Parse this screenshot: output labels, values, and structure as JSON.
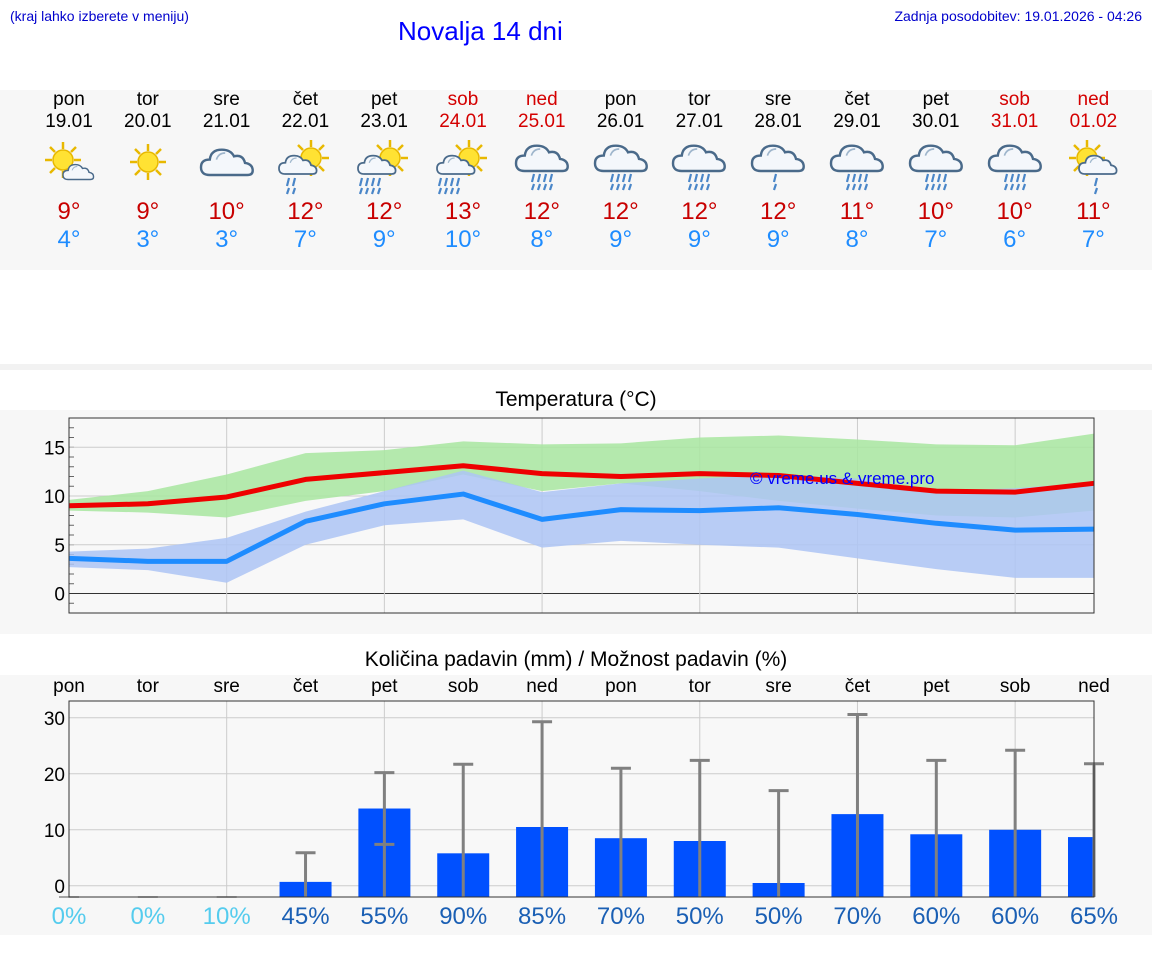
{
  "header": {
    "note": "(kraj lahko izberete v meniju)",
    "title": "Novalja 14 dni",
    "updated": "Zadnja posodobitev: 19.01.2026 - 04:26"
  },
  "days": [
    {
      "name": "pon",
      "date": "19.01",
      "weekend": false,
      "icon": "sun-cloud-icon",
      "tmax": "9°",
      "tmin": "4°"
    },
    {
      "name": "tor",
      "date": "20.01",
      "weekend": false,
      "icon": "sun-icon",
      "tmax": "9°",
      "tmin": "3°"
    },
    {
      "name": "sre",
      "date": "21.01",
      "weekend": false,
      "icon": "cloud-icon",
      "tmax": "10°",
      "tmin": "3°"
    },
    {
      "name": "čet",
      "date": "22.01",
      "weekend": false,
      "icon": "sun-rain-icon",
      "tmax": "12°",
      "tmin": "7°"
    },
    {
      "name": "pet",
      "date": "23.01",
      "weekend": false,
      "icon": "sun-heavy-rain-icon",
      "tmax": "12°",
      "tmin": "9°"
    },
    {
      "name": "sob",
      "date": "24.01",
      "weekend": true,
      "icon": "sun-heavy-rain-icon",
      "tmax": "13°",
      "tmin": "10°"
    },
    {
      "name": "ned",
      "date": "25.01",
      "weekend": true,
      "icon": "cloud-rain-icon",
      "tmax": "12°",
      "tmin": "8°"
    },
    {
      "name": "pon",
      "date": "26.01",
      "weekend": false,
      "icon": "cloud-rain-icon",
      "tmax": "12°",
      "tmin": "9°"
    },
    {
      "name": "tor",
      "date": "27.01",
      "weekend": false,
      "icon": "cloud-rain-icon",
      "tmax": "12°",
      "tmin": "9°"
    },
    {
      "name": "sre",
      "date": "28.01",
      "weekend": false,
      "icon": "cloud-light-rain-icon",
      "tmax": "12°",
      "tmin": "9°"
    },
    {
      "name": "čet",
      "date": "29.01",
      "weekend": false,
      "icon": "cloud-rain-icon",
      "tmax": "11°",
      "tmin": "8°"
    },
    {
      "name": "pet",
      "date": "30.01",
      "weekend": false,
      "icon": "cloud-rain-icon",
      "tmax": "10°",
      "tmin": "7°"
    },
    {
      "name": "sob",
      "date": "31.01",
      "weekend": true,
      "icon": "cloud-rain-icon",
      "tmax": "10°",
      "tmin": "6°"
    },
    {
      "name": "ned",
      "date": "01.02",
      "weekend": true,
      "icon": "sun-light-rain-icon",
      "tmax": "11°",
      "tmin": "7°"
    }
  ],
  "colors": {
    "weekend": "#d40000",
    "max_line": "#ee0000",
    "min_line": "#1e8cff",
    "max_band": "#a8e6a0",
    "min_band": "#adc4f5",
    "bar": "#0050ff",
    "whisker": "#808080",
    "pct_low": "#55ccee",
    "pct_high": "#1a5fb4"
  },
  "chart_data": [
    {
      "type": "line",
      "title": "Temperatura (°C)",
      "x": [
        1,
        2,
        3,
        4,
        5,
        6,
        7,
        8,
        9,
        10,
        11,
        12,
        13,
        14
      ],
      "ylim": [
        -2,
        18
      ],
      "yticks": [
        0,
        5,
        10,
        15
      ],
      "watermark": "© vreme.us & vreme.pro",
      "series": [
        {
          "name": "max",
          "values": [
            9,
            9.2,
            9.9,
            11.7,
            12.4,
            13.1,
            12.3,
            12,
            12.3,
            12.1,
            11.3,
            10.5,
            10.4,
            11.3
          ]
        },
        {
          "name": "min",
          "values": [
            3.6,
            3.3,
            3.3,
            7.4,
            9.2,
            10.2,
            7.6,
            8.6,
            8.5,
            8.8,
            8.1,
            7.2,
            6.5,
            6.6
          ]
        },
        {
          "name": "max_range_low",
          "values": [
            8.5,
            8.3,
            7.8,
            9.5,
            10.5,
            12.2,
            10.5,
            11.3,
            10.5,
            9.5,
            8.7,
            8,
            7.8,
            8.5
          ]
        },
        {
          "name": "max_range_high",
          "values": [
            9.6,
            10.5,
            12.2,
            14.4,
            14.7,
            15.6,
            15.3,
            15.4,
            16,
            16.2,
            15.8,
            15.3,
            15.2,
            16.4
          ]
        },
        {
          "name": "min_range_low",
          "values": [
            2.7,
            2.4,
            1.1,
            5,
            7,
            7.6,
            4.7,
            5.4,
            5,
            4.7,
            3.6,
            2.5,
            1.6,
            1.6
          ]
        },
        {
          "name": "min_range_high",
          "values": [
            4.3,
            4.6,
            5.7,
            8.4,
            10.5,
            12.6,
            10.4,
            11.3,
            11.8,
            12.2,
            11.8,
            10.5,
            10.8,
            11.4
          ]
        }
      ]
    },
    {
      "type": "bar",
      "title": "Količina padavin (mm) / Možnost padavin (%)",
      "categories": [
        "pon",
        "tor",
        "sre",
        "čet",
        "pet",
        "sob",
        "ned",
        "pon",
        "tor",
        "sre",
        "čet",
        "pet",
        "sob",
        "ned"
      ],
      "ylim": [
        -2,
        33
      ],
      "yticks": [
        0,
        10,
        20,
        30
      ],
      "values": [
        0,
        0,
        0,
        0.7,
        13.8,
        5.8,
        10.5,
        8.5,
        8,
        0.5,
        12.8,
        9.2,
        10,
        8.7
      ],
      "error_low": [
        0,
        0,
        0,
        0,
        7.4,
        0,
        0,
        0,
        0,
        0,
        0,
        0,
        0,
        0
      ],
      "error_high": [
        0,
        0,
        0,
        5.9,
        20.2,
        21.7,
        29.3,
        21,
        22.4,
        17,
        30.6,
        22.4,
        24.2,
        21.8
      ],
      "probability": [
        "0%",
        "0%",
        "10%",
        "45%",
        "55%",
        "90%",
        "85%",
        "70%",
        "50%",
        "50%",
        "70%",
        "60%",
        "60%",
        "65%"
      ]
    }
  ]
}
